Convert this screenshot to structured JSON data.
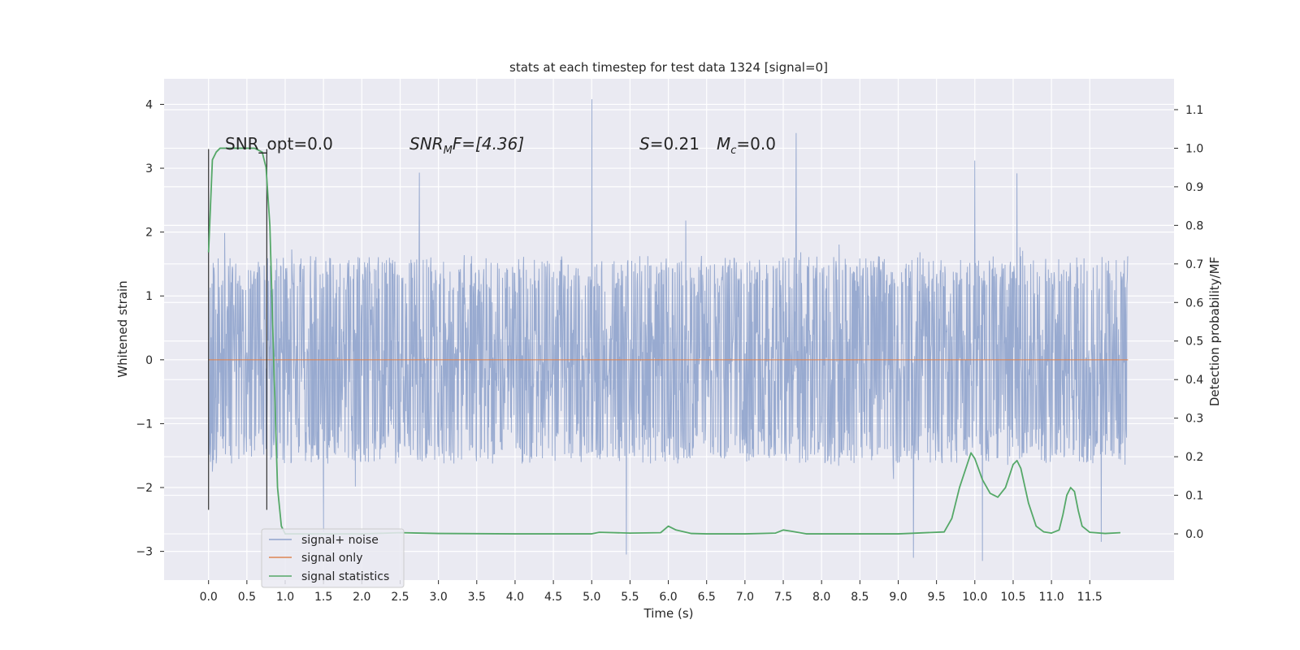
{
  "chart_data": {
    "type": "line",
    "title": "stats at each timestep for test data 1324 [signal=0]",
    "xlabel": "Time (s)",
    "ylabel_left": "Whitened strain",
    "ylabel_right": "Detection probability/MF",
    "xlim": [
      -0.58,
      12.6
    ],
    "ylim_left": [
      -3.45,
      4.4
    ],
    "ylim_right": [
      -0.12,
      1.18
    ],
    "x_ticks": [
      "0.0",
      "0.5",
      "1.0",
      "1.5",
      "2.0",
      "2.5",
      "3.0",
      "3.5",
      "4.0",
      "4.5",
      "5.0",
      "5.5",
      "6.0",
      "6.5",
      "7.0",
      "7.5",
      "8.0",
      "8.5",
      "9.0",
      "9.5",
      "10.0",
      "10.5",
      "11.0",
      "11.5"
    ],
    "y_left_ticks": [
      "−3",
      "−2",
      "−1",
      "0",
      "1",
      "2",
      "3",
      "4"
    ],
    "y_right_ticks": [
      "0.0",
      "0.1",
      "0.2",
      "0.3",
      "0.4",
      "0.5",
      "0.6",
      "0.7",
      "0.8",
      "0.9",
      "1.0",
      "1.1"
    ],
    "grid": true,
    "legend_position": "lower-left",
    "annotations": {
      "snr_opt": "SNR_opt=0.0",
      "snr_mf_base": "SNR",
      "snr_mf_sub": "M",
      "snr_mf_rest": "F=[4.36]",
      "s_italic": "S",
      "s_value": "=0.21",
      "mc_italic": "M",
      "mc_sub": "c",
      "mc_value": "=0.0"
    },
    "markers": [
      {
        "x": 0.0,
        "y_from": -2.35,
        "y_to": 3.3
      },
      {
        "x": 0.76,
        "y_from": -2.35,
        "y_to": 3.3
      }
    ],
    "series": [
      {
        "name": "signal+ noise",
        "color": "#8fa3cc",
        "axis": "left",
        "note": "whitened strain noise spanning 0.0 to 12.0 s",
        "t_start": 0.0,
        "t_end": 12.0,
        "typical_amplitude": 1.25,
        "peaks": [
          {
            "x": 5.0,
            "y": 4.08
          },
          {
            "x": 7.67,
            "y": 3.55
          },
          {
            "x": 10.0,
            "y": 3.12
          },
          {
            "x": 2.75,
            "y": 2.93
          },
          {
            "x": 10.55,
            "y": 2.92
          },
          {
            "x": 5.45,
            "y": -3.05
          },
          {
            "x": 10.1,
            "y": -3.15
          },
          {
            "x": 9.2,
            "y": -3.1
          },
          {
            "x": 1.5,
            "y": -2.7
          },
          {
            "x": 11.65,
            "y": -2.85
          }
        ]
      },
      {
        "name": "signal only",
        "color": "#dd8452",
        "axis": "left",
        "x": [
          0.0,
          12.0
        ],
        "y": [
          0.0,
          0.0
        ]
      },
      {
        "name": "signal statistics",
        "color": "#55a868",
        "axis": "right",
        "x": [
          0.0,
          0.05,
          0.1,
          0.15,
          0.2,
          0.3,
          0.4,
          0.5,
          0.6,
          0.65,
          0.7,
          0.75,
          0.8,
          0.85,
          0.9,
          0.95,
          1.0,
          1.1,
          1.5,
          2.0,
          2.5,
          3.0,
          4.0,
          5.0,
          5.1,
          5.5,
          5.9,
          6.0,
          6.1,
          6.3,
          6.5,
          7.0,
          7.4,
          7.5,
          7.6,
          7.8,
          8.0,
          9.0,
          9.6,
          9.7,
          9.8,
          9.9,
          9.95,
          10.0,
          10.1,
          10.2,
          10.3,
          10.4,
          10.5,
          10.55,
          10.6,
          10.7,
          10.8,
          10.9,
          11.0,
          11.1,
          11.15,
          11.2,
          11.25,
          11.3,
          11.35,
          11.4,
          11.5,
          11.7,
          11.9
        ],
        "y": [
          0.73,
          0.97,
          0.99,
          1.0,
          1.0,
          1.0,
          1.0,
          1.0,
          1.0,
          0.995,
          0.99,
          0.95,
          0.8,
          0.45,
          0.12,
          0.02,
          0.0,
          0.0,
          0.0,
          0.0,
          0.003,
          0.001,
          0.0,
          0.0,
          0.004,
          0.002,
          0.003,
          0.02,
          0.01,
          0.001,
          0.0,
          0.0,
          0.002,
          0.01,
          0.007,
          0.0,
          0.0,
          0.0,
          0.005,
          0.04,
          0.12,
          0.18,
          0.21,
          0.195,
          0.14,
          0.105,
          0.095,
          0.12,
          0.18,
          0.19,
          0.17,
          0.08,
          0.02,
          0.005,
          0.002,
          0.01,
          0.05,
          0.1,
          0.12,
          0.11,
          0.06,
          0.02,
          0.004,
          0.001,
          0.003
        ]
      }
    ]
  }
}
